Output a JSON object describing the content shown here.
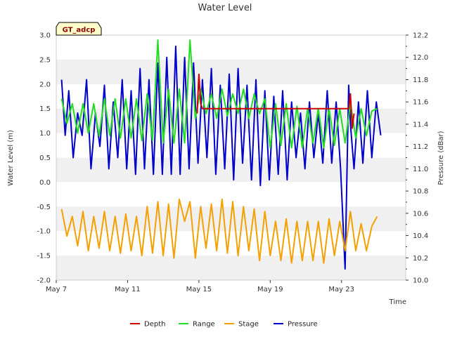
{
  "chart_data": {
    "type": "line",
    "title": "Water Level",
    "xlabel": "Time",
    "ylabel": "Water Level (m)",
    "y2label": "Pressure (dBar)",
    "badge": "GT_adcp",
    "xlim": [
      0,
      19.6
    ],
    "ylim": [
      -2.0,
      3.0
    ],
    "y2lim": [
      10.0,
      12.2
    ],
    "x_ticks": [
      {
        "x": 0,
        "label": "May 7"
      },
      {
        "x": 4,
        "label": "May 11"
      },
      {
        "x": 8,
        "label": "May 15"
      },
      {
        "x": 12,
        "label": "May 19"
      },
      {
        "x": 16,
        "label": "May 23"
      }
    ],
    "y_ticks": [
      "-2.0",
      "-1.5",
      "-1.0",
      "-0.5",
      "0.0",
      "0.5",
      "1.0",
      "1.5",
      "2.0",
      "2.5",
      "3.0"
    ],
    "y2_ticks": [
      "10.0",
      "10.2",
      "10.4",
      "10.6",
      "10.8",
      "11.0",
      "11.2",
      "11.4",
      "11.6",
      "11.8",
      "12.0",
      "12.2"
    ],
    "grid": "horizontal-bands",
    "legend_position": "bottom",
    "colors": {
      "Depth": "#cc0000",
      "Range": "#22dd22",
      "Stage": "#f5a000",
      "Pressure": "#0000cc"
    },
    "series": [
      {
        "name": "Pressure",
        "axis": "right",
        "x": [
          0.3,
          0.5,
          0.7,
          0.95,
          1.2,
          1.45,
          1.7,
          1.95,
          2.2,
          2.45,
          2.7,
          2.95,
          3.2,
          3.45,
          3.7,
          3.95,
          4.2,
          4.45,
          4.7,
          4.95,
          5.2,
          5.45,
          5.7,
          5.95,
          6.2,
          6.45,
          6.7,
          6.95,
          7.2,
          7.45,
          7.7,
          7.95,
          8.2,
          8.45,
          8.7,
          8.95,
          9.2,
          9.45,
          9.7,
          9.95,
          10.2,
          10.45,
          10.7,
          10.95,
          11.2,
          11.45,
          11.7,
          11.95,
          12.2,
          12.45,
          12.7,
          12.95,
          13.2,
          13.45,
          13.7,
          13.95,
          14.2,
          14.45,
          14.7,
          14.95,
          15.2,
          15.45,
          15.7,
          15.95,
          16.2,
          16.4,
          16.5,
          16.7,
          16.95,
          17.2,
          17.45,
          17.7,
          17.95,
          18.2
        ],
        "y": [
          11.8,
          11.3,
          11.7,
          11.1,
          11.5,
          11.3,
          11.8,
          11.0,
          11.5,
          11.2,
          11.75,
          11.0,
          11.6,
          11.1,
          11.8,
          11.0,
          11.7,
          10.95,
          11.9,
          11.0,
          11.8,
          10.95,
          11.95,
          10.95,
          12.0,
          10.95,
          12.1,
          10.95,
          12.0,
          11.0,
          11.95,
          11.05,
          11.8,
          11.1,
          11.9,
          10.95,
          11.75,
          11.0,
          11.85,
          10.9,
          11.9,
          11.05,
          11.75,
          10.9,
          11.8,
          10.85,
          11.7,
          10.9,
          11.65,
          10.95,
          11.7,
          10.9,
          11.6,
          11.1,
          11.5,
          11.0,
          11.6,
          11.1,
          11.5,
          11.05,
          11.7,
          11.05,
          11.6,
          11.0,
          10.1,
          11.75,
          11.4,
          11.0,
          11.6,
          11.05,
          11.7,
          11.1,
          11.6,
          11.3
        ]
      },
      {
        "name": "Range",
        "axis": "left",
        "x": [
          0.3,
          0.6,
          0.9,
          1.2,
          1.5,
          1.8,
          2.1,
          2.4,
          2.7,
          3.0,
          3.3,
          3.6,
          3.9,
          4.2,
          4.5,
          4.8,
          5.1,
          5.4,
          5.7,
          6.0,
          6.3,
          6.6,
          6.9,
          7.2,
          7.5,
          7.8,
          8.1,
          8.4,
          8.7,
          9.0,
          9.3,
          9.6,
          9.9,
          10.2,
          10.5,
          10.8,
          11.1,
          11.4,
          11.7,
          12.0,
          12.3,
          12.6,
          12.9,
          13.2,
          13.5,
          13.8,
          14.1,
          14.4,
          14.7,
          15.0,
          15.3,
          15.6,
          15.9,
          16.2,
          16.5,
          16.8,
          17.1,
          17.4,
          17.7,
          18.0
        ],
        "y": [
          1.7,
          1.2,
          1.6,
          1.0,
          1.6,
          1.0,
          1.6,
          0.95,
          1.7,
          0.95,
          1.7,
          0.9,
          1.7,
          0.9,
          1.7,
          0.85,
          1.8,
          0.85,
          2.9,
          0.8,
          1.9,
          0.8,
          1.9,
          0.8,
          2.9,
          1.3,
          1.9,
          1.4,
          1.8,
          1.3,
          1.9,
          1.35,
          1.8,
          1.4,
          1.9,
          1.3,
          1.8,
          1.4,
          1.7,
          0.7,
          1.6,
          0.75,
          1.6,
          0.7,
          1.55,
          0.7,
          1.5,
          0.8,
          1.5,
          0.7,
          1.5,
          0.75,
          1.5,
          0.8,
          1.6,
          0.9,
          1.5,
          0.95,
          1.45,
          1.5
        ]
      },
      {
        "name": "Stage",
        "axis": "left",
        "x": [
          0.3,
          0.6,
          0.9,
          1.2,
          1.5,
          1.8,
          2.1,
          2.4,
          2.7,
          3.0,
          3.3,
          3.6,
          3.9,
          4.2,
          4.5,
          4.8,
          5.1,
          5.4,
          5.7,
          6.0,
          6.3,
          6.6,
          6.9,
          7.2,
          7.5,
          7.8,
          8.1,
          8.4,
          8.7,
          9.0,
          9.3,
          9.6,
          9.9,
          10.2,
          10.5,
          10.8,
          11.1,
          11.4,
          11.7,
          12.0,
          12.3,
          12.6,
          12.9,
          13.2,
          13.5,
          13.8,
          14.1,
          14.4,
          14.7,
          15.0,
          15.3,
          15.6,
          15.9,
          16.2,
          16.5,
          16.8,
          17.1,
          17.4,
          17.7,
          18.0
        ],
        "y": [
          -0.55,
          -1.1,
          -0.7,
          -1.3,
          -0.6,
          -1.4,
          -0.7,
          -1.35,
          -0.6,
          -1.4,
          -0.7,
          -1.45,
          -0.65,
          -1.4,
          -0.7,
          -1.5,
          -0.5,
          -1.45,
          -0.4,
          -1.5,
          -0.45,
          -1.55,
          -0.35,
          -0.8,
          -0.4,
          -1.55,
          -0.5,
          -1.35,
          -0.45,
          -1.4,
          -0.35,
          -1.45,
          -0.4,
          -1.5,
          -0.5,
          -1.4,
          -0.55,
          -1.6,
          -0.6,
          -1.5,
          -0.8,
          -1.6,
          -0.75,
          -1.65,
          -0.8,
          -1.6,
          -0.8,
          -1.6,
          -0.8,
          -1.65,
          -0.75,
          -1.5,
          -0.8,
          -1.4,
          -0.6,
          -1.4,
          -0.85,
          -1.4,
          -0.9,
          -0.7
        ]
      },
      {
        "name": "Depth",
        "axis": "left",
        "x": [
          7.9,
          8.0,
          8.1,
          8.2,
          16.4,
          16.5,
          16.6,
          16.7
        ],
        "y": [
          1.4,
          2.2,
          1.6,
          1.5,
          1.5,
          1.8,
          1.1,
          1.4
        ]
      }
    ]
  }
}
